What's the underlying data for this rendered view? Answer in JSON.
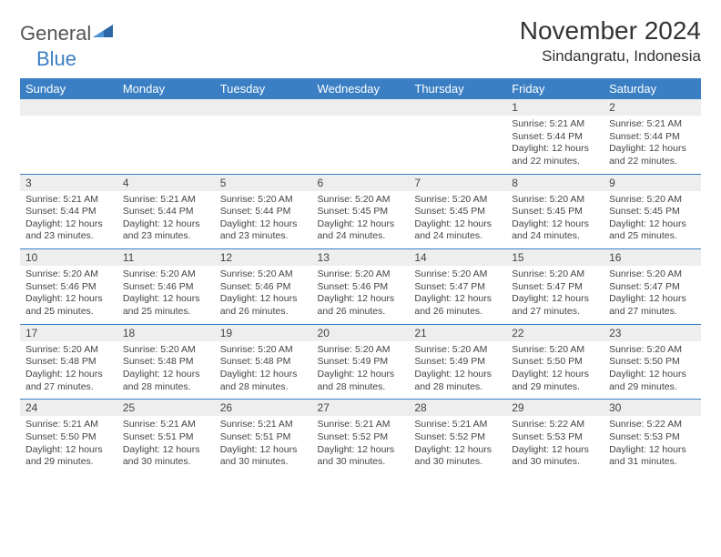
{
  "logo": {
    "general": "General",
    "blue": "Blue"
  },
  "title": "November 2024",
  "location": "Sindangratu, Indonesia",
  "colors": {
    "header_bg": "#3a7fc4",
    "header_fg": "#ffffff",
    "daynum_bg": "#eeeeee",
    "text": "#444444",
    "rule": "#3a7fc4",
    "logo_gray": "#555555",
    "logo_blue": "#3a7fc4",
    "page_bg": "#ffffff"
  },
  "typography": {
    "title_fontsize": 28,
    "location_fontsize": 17,
    "logo_fontsize": 22,
    "dayheader_fontsize": 13,
    "daynum_fontsize": 12,
    "body_fontsize": 10.5
  },
  "day_headers": [
    "Sunday",
    "Monday",
    "Tuesday",
    "Wednesday",
    "Thursday",
    "Friday",
    "Saturday"
  ],
  "weeks": [
    [
      null,
      null,
      null,
      null,
      null,
      {
        "n": "1",
        "sr": "5:21 AM",
        "ss": "5:44 PM",
        "dl": "12 hours and 22 minutes."
      },
      {
        "n": "2",
        "sr": "5:21 AM",
        "ss": "5:44 PM",
        "dl": "12 hours and 22 minutes."
      }
    ],
    [
      {
        "n": "3",
        "sr": "5:21 AM",
        "ss": "5:44 PM",
        "dl": "12 hours and 23 minutes."
      },
      {
        "n": "4",
        "sr": "5:21 AM",
        "ss": "5:44 PM",
        "dl": "12 hours and 23 minutes."
      },
      {
        "n": "5",
        "sr": "5:20 AM",
        "ss": "5:44 PM",
        "dl": "12 hours and 23 minutes."
      },
      {
        "n": "6",
        "sr": "5:20 AM",
        "ss": "5:45 PM",
        "dl": "12 hours and 24 minutes."
      },
      {
        "n": "7",
        "sr": "5:20 AM",
        "ss": "5:45 PM",
        "dl": "12 hours and 24 minutes."
      },
      {
        "n": "8",
        "sr": "5:20 AM",
        "ss": "5:45 PM",
        "dl": "12 hours and 24 minutes."
      },
      {
        "n": "9",
        "sr": "5:20 AM",
        "ss": "5:45 PM",
        "dl": "12 hours and 25 minutes."
      }
    ],
    [
      {
        "n": "10",
        "sr": "5:20 AM",
        "ss": "5:46 PM",
        "dl": "12 hours and 25 minutes."
      },
      {
        "n": "11",
        "sr": "5:20 AM",
        "ss": "5:46 PM",
        "dl": "12 hours and 25 minutes."
      },
      {
        "n": "12",
        "sr": "5:20 AM",
        "ss": "5:46 PM",
        "dl": "12 hours and 26 minutes."
      },
      {
        "n": "13",
        "sr": "5:20 AM",
        "ss": "5:46 PM",
        "dl": "12 hours and 26 minutes."
      },
      {
        "n": "14",
        "sr": "5:20 AM",
        "ss": "5:47 PM",
        "dl": "12 hours and 26 minutes."
      },
      {
        "n": "15",
        "sr": "5:20 AM",
        "ss": "5:47 PM",
        "dl": "12 hours and 27 minutes."
      },
      {
        "n": "16",
        "sr": "5:20 AM",
        "ss": "5:47 PM",
        "dl": "12 hours and 27 minutes."
      }
    ],
    [
      {
        "n": "17",
        "sr": "5:20 AM",
        "ss": "5:48 PM",
        "dl": "12 hours and 27 minutes."
      },
      {
        "n": "18",
        "sr": "5:20 AM",
        "ss": "5:48 PM",
        "dl": "12 hours and 28 minutes."
      },
      {
        "n": "19",
        "sr": "5:20 AM",
        "ss": "5:48 PM",
        "dl": "12 hours and 28 minutes."
      },
      {
        "n": "20",
        "sr": "5:20 AM",
        "ss": "5:49 PM",
        "dl": "12 hours and 28 minutes."
      },
      {
        "n": "21",
        "sr": "5:20 AM",
        "ss": "5:49 PM",
        "dl": "12 hours and 28 minutes."
      },
      {
        "n": "22",
        "sr": "5:20 AM",
        "ss": "5:50 PM",
        "dl": "12 hours and 29 minutes."
      },
      {
        "n": "23",
        "sr": "5:20 AM",
        "ss": "5:50 PM",
        "dl": "12 hours and 29 minutes."
      }
    ],
    [
      {
        "n": "24",
        "sr": "5:21 AM",
        "ss": "5:50 PM",
        "dl": "12 hours and 29 minutes."
      },
      {
        "n": "25",
        "sr": "5:21 AM",
        "ss": "5:51 PM",
        "dl": "12 hours and 30 minutes."
      },
      {
        "n": "26",
        "sr": "5:21 AM",
        "ss": "5:51 PM",
        "dl": "12 hours and 30 minutes."
      },
      {
        "n": "27",
        "sr": "5:21 AM",
        "ss": "5:52 PM",
        "dl": "12 hours and 30 minutes."
      },
      {
        "n": "28",
        "sr": "5:21 AM",
        "ss": "5:52 PM",
        "dl": "12 hours and 30 minutes."
      },
      {
        "n": "29",
        "sr": "5:22 AM",
        "ss": "5:53 PM",
        "dl": "12 hours and 30 minutes."
      },
      {
        "n": "30",
        "sr": "5:22 AM",
        "ss": "5:53 PM",
        "dl": "12 hours and 31 minutes."
      }
    ]
  ],
  "labels": {
    "sunrise": "Sunrise:",
    "sunset": "Sunset:",
    "daylight": "Daylight:"
  }
}
